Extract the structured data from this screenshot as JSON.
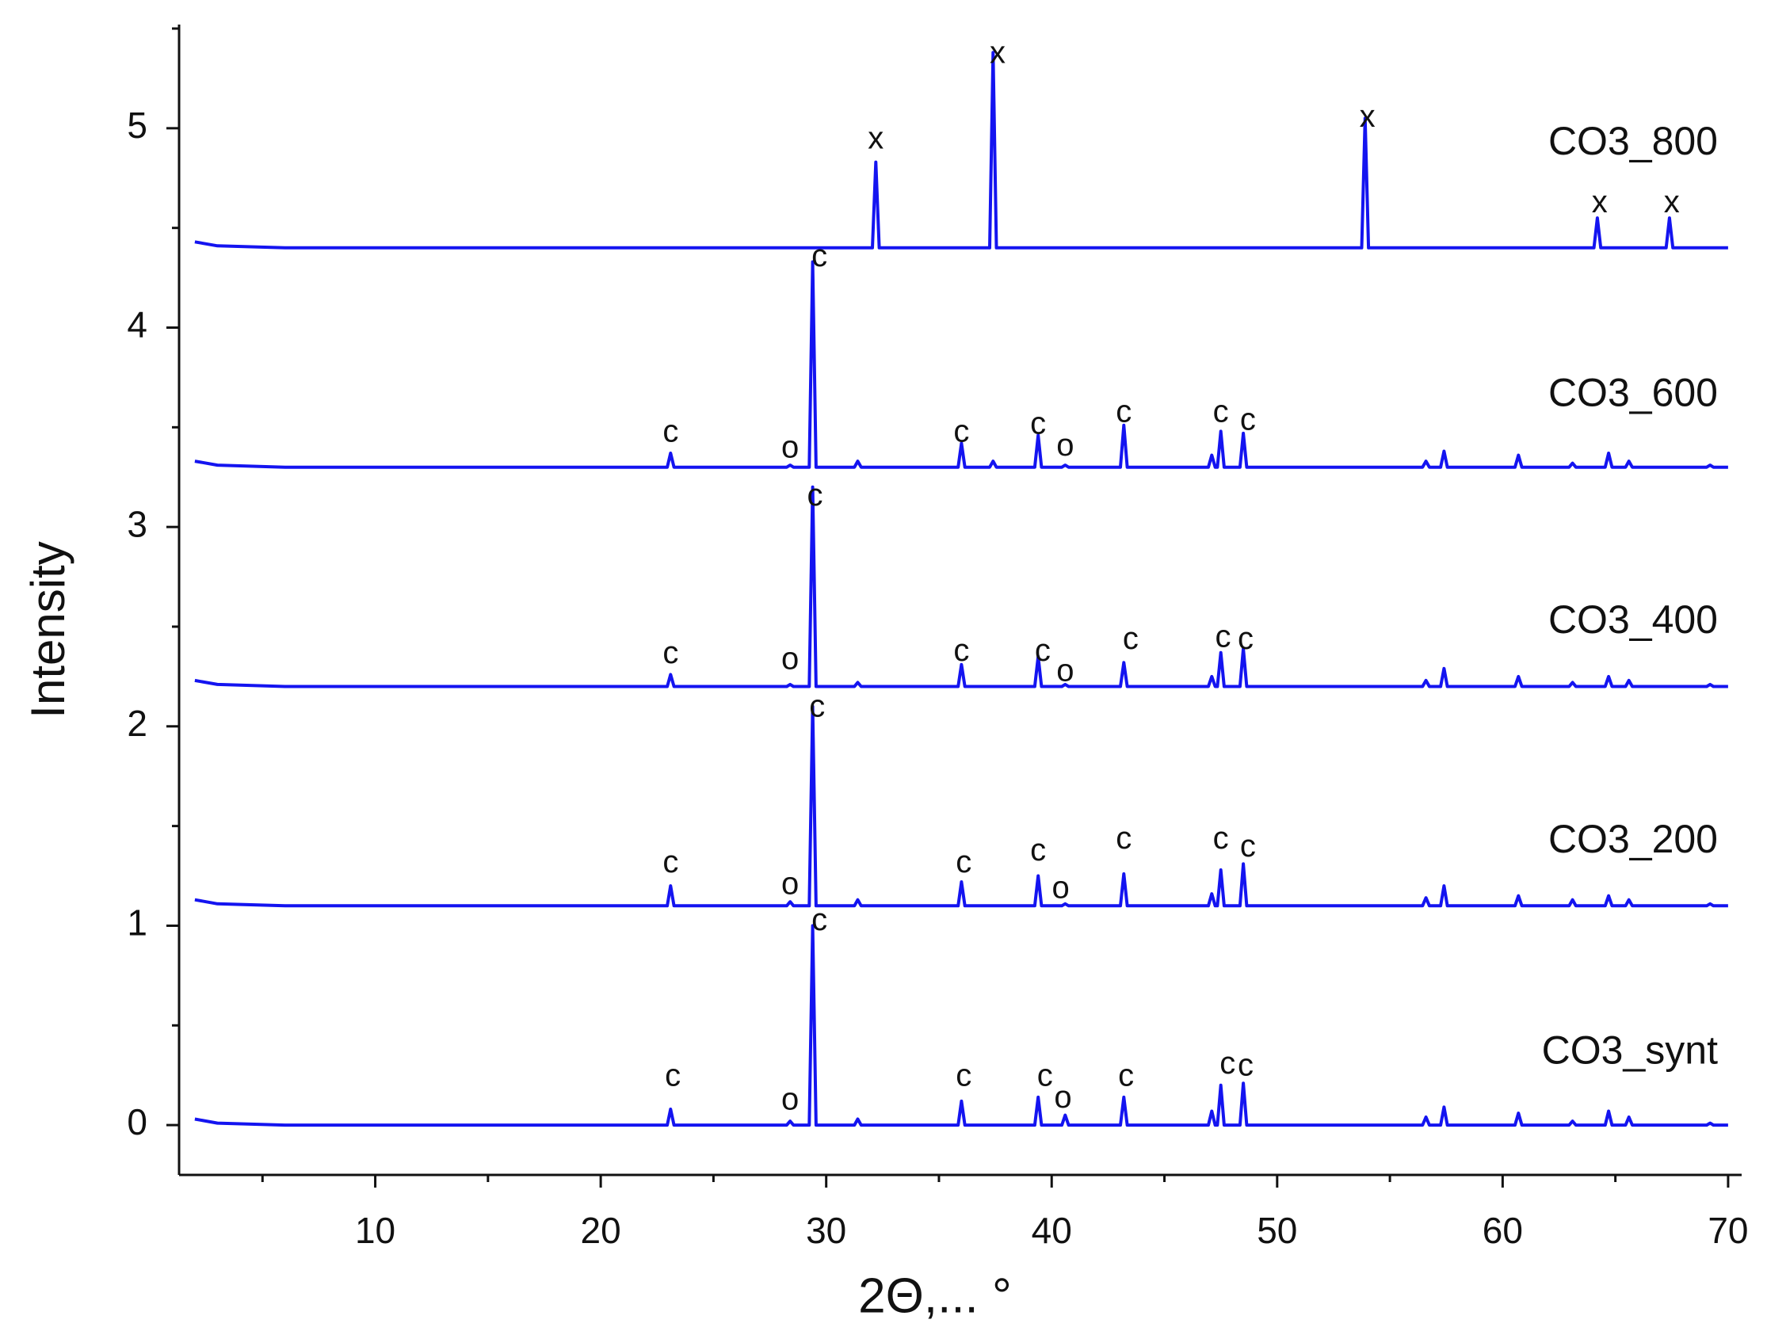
{
  "chart_data": {
    "type": "line",
    "xlabel": "2Θ,... °",
    "ylabel": "Intensity",
    "xlim": [
      1.3,
      70.6
    ],
    "ylim": [
      -0.25,
      5.52
    ],
    "xticks": [
      10,
      20,
      30,
      40,
      50,
      60,
      70
    ],
    "xminorticks": [
      5,
      15,
      25,
      35,
      45,
      55,
      65
    ],
    "yticks": [
      0,
      1,
      2,
      3,
      4,
      5
    ],
    "yminorticks": [
      0.5,
      1.5,
      2.5,
      3.5,
      4.5,
      5.5
    ],
    "x": [
      2,
      3,
      6,
      22.95,
      23.1,
      23.25,
      28.25,
      28.4,
      28.55,
      29.25,
      29.4,
      29.55,
      31.25,
      31.4,
      31.55,
      32.05,
      32.2,
      32.35,
      35.85,
      36.0,
      36.15,
      37.25,
      37.4,
      37.55,
      39.25,
      39.4,
      39.55,
      40.45,
      40.6,
      40.75,
      43.05,
      43.2,
      43.35,
      46.95,
      47.1,
      47.25,
      47.35,
      47.5,
      47.65,
      48.35,
      48.5,
      48.65,
      53.75,
      53.9,
      54.05,
      56.45,
      56.6,
      56.75,
      57.25,
      57.4,
      57.55,
      60.55,
      60.7,
      60.85,
      62.95,
      63.1,
      63.25,
      64.05,
      64.2,
      64.35,
      64.55,
      64.7,
      64.85,
      65.45,
      65.6,
      65.75,
      67.25,
      67.4,
      67.55,
      69.05,
      69.2,
      69.35,
      70
    ],
    "series": [
      {
        "name": "CO3_800",
        "color": "#1414f0",
        "values": [
          4.43,
          4.41,
          4.4,
          4.4,
          4.4,
          4.4,
          4.4,
          4.4,
          4.4,
          4.4,
          4.4,
          4.4,
          4.4,
          4.4,
          4.4,
          4.4,
          4.83,
          4.4,
          4.4,
          4.4,
          4.4,
          4.4,
          5.38,
          4.4,
          4.4,
          4.4,
          4.4,
          4.4,
          4.4,
          4.4,
          4.4,
          4.4,
          4.4,
          4.4,
          4.4,
          4.4,
          4.4,
          4.4,
          4.4,
          4.4,
          4.4,
          4.4,
          4.4,
          5.05,
          4.4,
          4.4,
          4.4,
          4.4,
          4.4,
          4.4,
          4.4,
          4.4,
          4.4,
          4.4,
          4.4,
          4.4,
          4.4,
          4.4,
          4.55,
          4.4,
          4.4,
          4.4,
          4.4,
          4.4,
          4.4,
          4.4,
          4.4,
          4.55,
          4.4,
          4.4,
          4.4,
          4.4,
          4.4
        ]
      },
      {
        "name": "CO3_600",
        "color": "#1414f0",
        "values": [
          3.33,
          3.31,
          3.3,
          3.3,
          3.37,
          3.3,
          3.3,
          3.31,
          3.3,
          3.3,
          4.33,
          3.3,
          3.3,
          3.33,
          3.3,
          3.3,
          3.3,
          3.3,
          3.3,
          3.42,
          3.3,
          3.3,
          3.33,
          3.3,
          3.3,
          3.46,
          3.3,
          3.3,
          3.31,
          3.3,
          3.3,
          3.51,
          3.3,
          3.3,
          3.36,
          3.3,
          3.3,
          3.48,
          3.3,
          3.3,
          3.47,
          3.3,
          3.3,
          3.3,
          3.3,
          3.3,
          3.33,
          3.3,
          3.3,
          3.38,
          3.3,
          3.3,
          3.36,
          3.3,
          3.3,
          3.32,
          3.3,
          3.3,
          3.3,
          3.3,
          3.3,
          3.37,
          3.3,
          3.3,
          3.33,
          3.3,
          3.3,
          3.3,
          3.3,
          3.3,
          3.31,
          3.3,
          3.3
        ]
      },
      {
        "name": "CO3_400",
        "color": "#1414f0",
        "values": [
          2.23,
          2.21,
          2.2,
          2.2,
          2.26,
          2.2,
          2.2,
          2.21,
          2.2,
          2.2,
          3.2,
          2.2,
          2.2,
          2.22,
          2.2,
          2.2,
          2.2,
          2.2,
          2.2,
          2.31,
          2.2,
          2.2,
          2.2,
          2.2,
          2.2,
          2.35,
          2.2,
          2.2,
          2.21,
          2.2,
          2.2,
          2.32,
          2.2,
          2.2,
          2.25,
          2.2,
          2.2,
          2.37,
          2.2,
          2.2,
          2.39,
          2.2,
          2.2,
          2.2,
          2.2,
          2.2,
          2.23,
          2.2,
          2.2,
          2.29,
          2.2,
          2.2,
          2.25,
          2.2,
          2.2,
          2.22,
          2.2,
          2.2,
          2.2,
          2.2,
          2.2,
          2.25,
          2.2,
          2.2,
          2.23,
          2.2,
          2.2,
          2.2,
          2.2,
          2.2,
          2.21,
          2.2,
          2.2
        ]
      },
      {
        "name": "CO3_200",
        "color": "#1414f0",
        "values": [
          1.13,
          1.11,
          1.1,
          1.1,
          1.2,
          1.1,
          1.1,
          1.12,
          1.1,
          1.1,
          2.1,
          1.1,
          1.1,
          1.13,
          1.1,
          1.1,
          1.1,
          1.1,
          1.1,
          1.22,
          1.1,
          1.1,
          1.1,
          1.1,
          1.1,
          1.25,
          1.1,
          1.1,
          1.11,
          1.1,
          1.1,
          1.26,
          1.1,
          1.1,
          1.16,
          1.1,
          1.1,
          1.28,
          1.1,
          1.1,
          1.31,
          1.1,
          1.1,
          1.1,
          1.1,
          1.1,
          1.14,
          1.1,
          1.1,
          1.2,
          1.1,
          1.1,
          1.15,
          1.1,
          1.1,
          1.13,
          1.1,
          1.1,
          1.1,
          1.1,
          1.1,
          1.15,
          1.1,
          1.1,
          1.13,
          1.1,
          1.1,
          1.1,
          1.1,
          1.1,
          1.11,
          1.1,
          1.1
        ]
      },
      {
        "name": "CO3_synt",
        "color": "#1414f0",
        "values": [
          0.03,
          0.01,
          0,
          0,
          0.08,
          0,
          0,
          0.02,
          0,
          0,
          1.0,
          0,
          0,
          0.03,
          0,
          0,
          0,
          0,
          0,
          0.12,
          0,
          0,
          0,
          0,
          0,
          0.14,
          0,
          0,
          0.05,
          0,
          0,
          0.14,
          0,
          0,
          0.07,
          0,
          0,
          0.2,
          0,
          0,
          0.21,
          0,
          0,
          0,
          0,
          0,
          0.04,
          0,
          0,
          0.09,
          0,
          0,
          0.06,
          0,
          0,
          0.02,
          0,
          0,
          0,
          0,
          0,
          0.07,
          0,
          0,
          0.04,
          0,
          0,
          0,
          0,
          0,
          0.01,
          0,
          0
        ]
      }
    ],
    "annotations": [
      {
        "text": "x",
        "x": 32.2,
        "y": 4.94
      },
      {
        "text": "x",
        "x": 37.6,
        "y": 5.37
      },
      {
        "text": "x",
        "x": 54.0,
        "y": 5.05
      },
      {
        "text": "x",
        "x": 64.3,
        "y": 4.62
      },
      {
        "text": "x",
        "x": 67.5,
        "y": 4.62
      },
      {
        "text": "c",
        "x": 23.1,
        "y": 3.47
      },
      {
        "text": "o",
        "x": 28.4,
        "y": 3.39
      },
      {
        "text": "c",
        "x": 29.7,
        "y": 4.35
      },
      {
        "text": "c",
        "x": 36.0,
        "y": 3.47
      },
      {
        "text": "c",
        "x": 39.4,
        "y": 3.51
      },
      {
        "text": "o",
        "x": 40.6,
        "y": 3.4
      },
      {
        "text": "c",
        "x": 43.2,
        "y": 3.57
      },
      {
        "text": "c",
        "x": 47.5,
        "y": 3.57
      },
      {
        "text": "c",
        "x": 48.7,
        "y": 3.53
      },
      {
        "text": "c",
        "x": 23.1,
        "y": 2.36
      },
      {
        "text": "o",
        "x": 28.4,
        "y": 2.33
      },
      {
        "text": "c",
        "x": 29.5,
        "y": 3.15
      },
      {
        "text": "c",
        "x": 36.0,
        "y": 2.37
      },
      {
        "text": "c",
        "x": 39.6,
        "y": 2.37
      },
      {
        "text": "o",
        "x": 40.6,
        "y": 2.27
      },
      {
        "text": "c",
        "x": 43.5,
        "y": 2.43
      },
      {
        "text": "c",
        "x": 47.6,
        "y": 2.44
      },
      {
        "text": "c",
        "x": 48.6,
        "y": 2.43
      },
      {
        "text": "c",
        "x": 23.1,
        "y": 1.31
      },
      {
        "text": "o",
        "x": 28.4,
        "y": 1.2
      },
      {
        "text": "c",
        "x": 29.6,
        "y": 2.09
      },
      {
        "text": "c",
        "x": 36.1,
        "y": 1.31
      },
      {
        "text": "c",
        "x": 39.4,
        "y": 1.37
      },
      {
        "text": "o",
        "x": 40.4,
        "y": 1.18
      },
      {
        "text": "c",
        "x": 43.2,
        "y": 1.43
      },
      {
        "text": "c",
        "x": 47.5,
        "y": 1.43
      },
      {
        "text": "c",
        "x": 48.7,
        "y": 1.39
      },
      {
        "text": "c",
        "x": 23.2,
        "y": 0.24
      },
      {
        "text": "o",
        "x": 28.4,
        "y": 0.12
      },
      {
        "text": "c",
        "x": 29.7,
        "y": 1.02
      },
      {
        "text": "c",
        "x": 36.1,
        "y": 0.24
      },
      {
        "text": "c",
        "x": 39.7,
        "y": 0.24
      },
      {
        "text": "o",
        "x": 40.5,
        "y": 0.13
      },
      {
        "text": "c",
        "x": 43.3,
        "y": 0.24
      },
      {
        "text": "c",
        "x": 47.8,
        "y": 0.3
      },
      {
        "text": "c",
        "x": 48.6,
        "y": 0.29
      }
    ]
  }
}
